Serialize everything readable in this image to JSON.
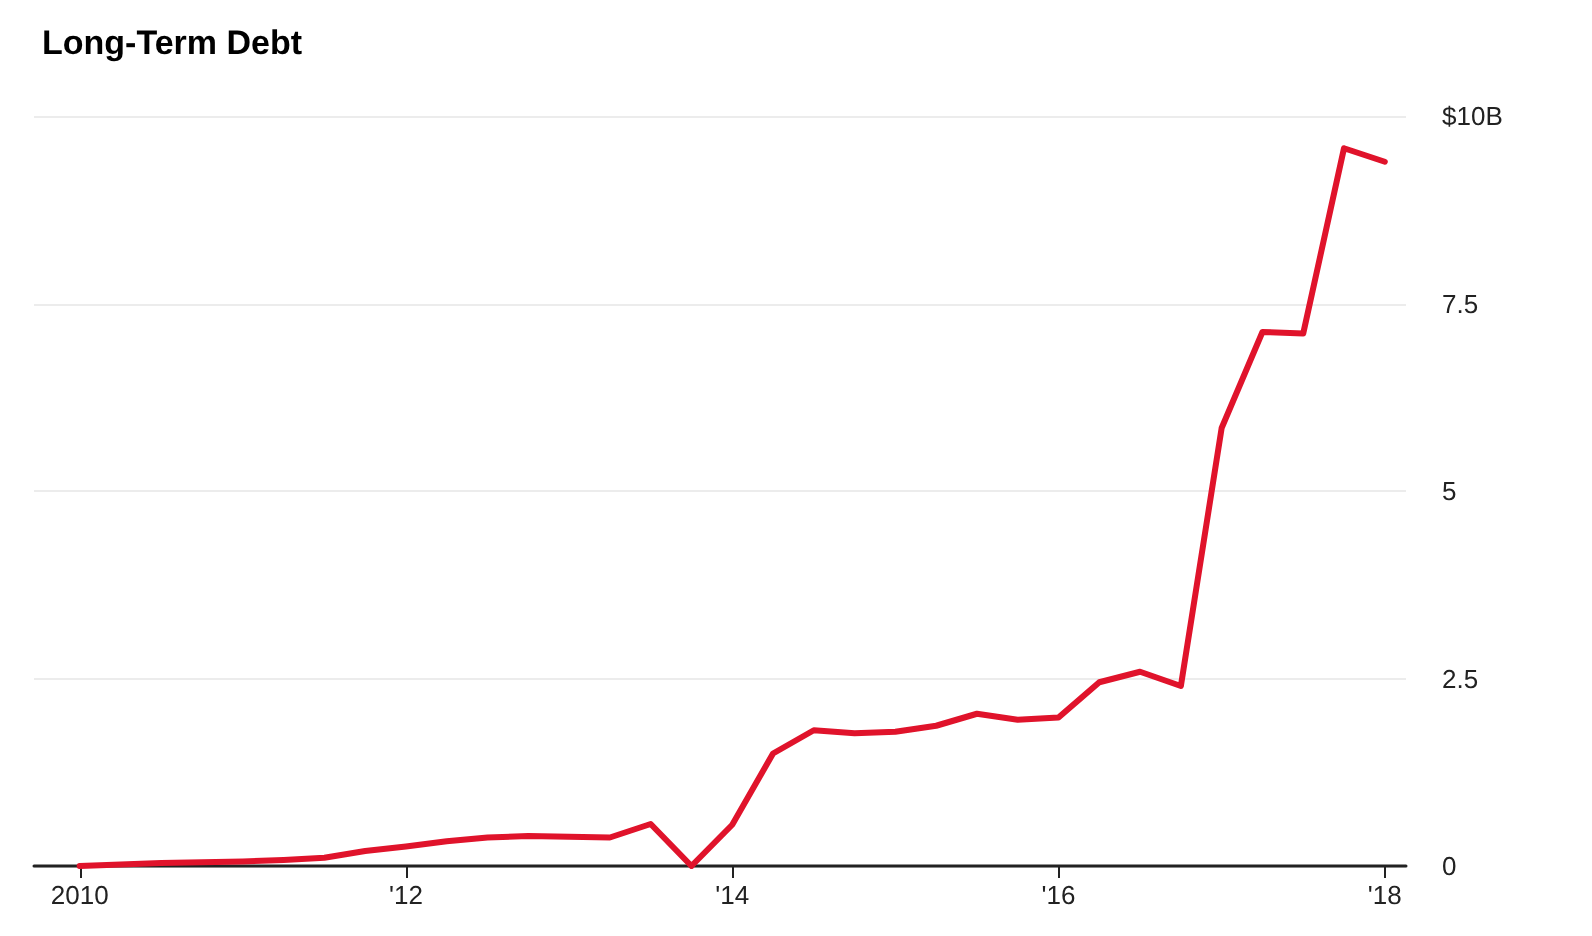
{
  "chart_data": {
    "type": "line",
    "title": "Long-Term Debt",
    "x": [
      2010,
      2010.25,
      2010.5,
      2010.75,
      2011,
      2011.25,
      2011.5,
      2011.75,
      2012,
      2012.25,
      2012.5,
      2012.75,
      2013,
      2013.25,
      2013.5,
      2013.75,
      2014,
      2014.25,
      2014.5,
      2014.75,
      2015,
      2015.25,
      2015.5,
      2015.75,
      2016,
      2016.25,
      2016.5,
      2016.75,
      2017,
      2017.25,
      2017.5,
      2017.75,
      2018
    ],
    "series": [
      {
        "color": "#e0132b",
        "values": [
          0,
          0.02,
          0.04,
          0.05,
          0.06,
          0.08,
          0.11,
          0.2,
          0.26,
          0.33,
          0.38,
          0.4,
          0.39,
          0.38,
          0.56,
          0,
          0.55,
          1.5,
          1.81,
          1.77,
          1.79,
          1.87,
          2.03,
          1.95,
          1.98,
          2.45,
          2.59,
          2.4,
          5.84,
          7.12,
          7.1,
          9.57,
          9.39
        ]
      }
    ],
    "xlim": [
      2009.72,
      2018.13
    ],
    "xticks": [
      {
        "value": 2010,
        "label": "2010"
      },
      {
        "value": 2012,
        "label": "'12"
      },
      {
        "value": 2014,
        "label": "'14"
      },
      {
        "value": 2016,
        "label": "'16"
      },
      {
        "value": 2018,
        "label": "'18"
      }
    ],
    "ylim": [
      0,
      10
    ],
    "yticks": [
      0,
      2.5,
      5,
      7.5,
      {
        "value": 10,
        "label": "$10B"
      }
    ],
    "grid": "y",
    "marker": "none",
    "line_style": "solid"
  }
}
